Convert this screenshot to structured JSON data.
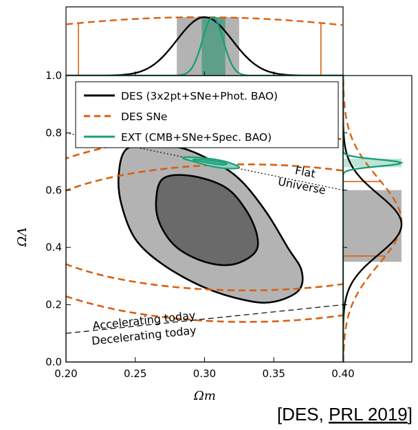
{
  "chart_data": {
    "type": "contour",
    "xlabel": "Ωm",
    "ylabel": "ΩΛ",
    "xlim": [
      0.2,
      0.4
    ],
    "ylim": [
      0.0,
      1.0
    ],
    "x_ticks": [
      "0.20",
      "0.25",
      "0.30",
      "0.35",
      "0.40"
    ],
    "y_ticks": [
      "0.0",
      "0.2",
      "0.4",
      "0.6",
      "0.8",
      "1.0"
    ],
    "legend_position": "top",
    "legend": [
      {
        "label": "DES (3x2pt+SNe+Phot. BAO)",
        "color": "#000000",
        "style": "solid"
      },
      {
        "label": "DES SNe",
        "color": "#d95f0e",
        "style": "dashed"
      },
      {
        "label": "EXT (CMB+SNe+Spec. BAO)",
        "color": "#1a9e77",
        "style": "solid"
      }
    ],
    "series": [
      {
        "key": "des",
        "color": "#000000",
        "fill_outer": "#b3b3b3",
        "fill_inner": "#6a6a6a",
        "center": [
          0.3,
          0.47
        ],
        "outer": [
          [
            0.243,
            0.74
          ],
          [
            0.26,
            0.76
          ],
          [
            0.285,
            0.745
          ],
          [
            0.31,
            0.69
          ],
          [
            0.327,
            0.63
          ],
          [
            0.345,
            0.52
          ],
          [
            0.36,
            0.4
          ],
          [
            0.37,
            0.32
          ],
          [
            0.368,
            0.25
          ],
          [
            0.35,
            0.21
          ],
          [
            0.33,
            0.215
          ],
          [
            0.3,
            0.26
          ],
          [
            0.27,
            0.34
          ],
          [
            0.25,
            0.43
          ],
          [
            0.24,
            0.55
          ],
          [
            0.238,
            0.65
          ]
        ],
        "inner": [
          [
            0.27,
            0.64
          ],
          [
            0.29,
            0.65
          ],
          [
            0.315,
            0.61
          ],
          [
            0.33,
            0.53
          ],
          [
            0.338,
            0.44
          ],
          [
            0.336,
            0.38
          ],
          [
            0.32,
            0.34
          ],
          [
            0.3,
            0.35
          ],
          [
            0.28,
            0.4
          ],
          [
            0.268,
            0.48
          ],
          [
            0.265,
            0.56
          ]
        ]
      },
      {
        "key": "sne",
        "color": "#d95f0e",
        "ellipses": [
          {
            "cx": 0.33,
            "cy": 0.47,
            "rx": 0.16,
            "ry": 0.22,
            "rot": 0
          },
          {
            "cx": 0.33,
            "cy": 0.47,
            "rx": 0.19,
            "ry": 0.33,
            "rot": 0
          }
        ]
      },
      {
        "key": "ext",
        "color": "#1a9e77",
        "fill": "#8fd3bf",
        "outer": [
          [
            0.286,
            0.715
          ],
          [
            0.3,
            0.712
          ],
          [
            0.315,
            0.7
          ],
          [
            0.325,
            0.68
          ],
          [
            0.318,
            0.675
          ],
          [
            0.305,
            0.683
          ],
          [
            0.292,
            0.7
          ],
          [
            0.285,
            0.71
          ]
        ],
        "inner": [
          [
            0.294,
            0.708
          ],
          [
            0.305,
            0.704
          ],
          [
            0.316,
            0.693
          ],
          [
            0.312,
            0.688
          ],
          [
            0.3,
            0.697
          ],
          [
            0.292,
            0.705
          ]
        ]
      }
    ],
    "marginal_x": {
      "des": {
        "mean": 0.3,
        "sigma": 0.02
      },
      "ext": {
        "mean": 0.306,
        "sigma": 0.0075
      },
      "sne": {
        "mean": 0.297,
        "sigma": 0.19
      },
      "des_band": [
        0.28,
        0.325
      ],
      "ext_band": [
        0.298,
        0.315
      ],
      "sne_band": [
        0.209,
        0.384
      ]
    },
    "marginal_y": {
      "des": {
        "mean": 0.48,
        "sigma": 0.105
      },
      "ext": {
        "mean": 0.695,
        "sigma": 0.012
      },
      "sne": {
        "mean": 0.49,
        "sigma": 0.15
      },
      "des_band": [
        0.35,
        0.6
      ],
      "ext_band": [
        0.68,
        0.71
      ],
      "sne_band": [
        0.37,
        0.63
      ]
    },
    "lines": [
      {
        "label_upper": "Flat",
        "label_lower": "Universe",
        "style": "dotted",
        "x": [
          0.2,
          0.4
        ],
        "y": [
          0.8,
          0.6
        ]
      },
      {
        "label_upper": "Accelerating today",
        "label_lower": "Decelerating today",
        "style": "dashed",
        "x": [
          0.2,
          0.4
        ],
        "y": [
          0.1,
          0.2
        ]
      }
    ]
  },
  "citation": {
    "prefix": "[DES, ",
    "link": "PRL 2019",
    "suffix": "]"
  }
}
